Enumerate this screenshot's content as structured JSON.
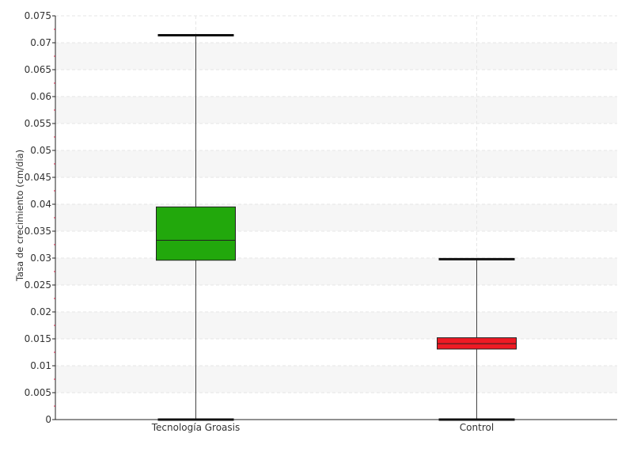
{
  "chart_data": {
    "type": "box",
    "title": "",
    "xlabel": "",
    "ylabel": "Tasa de crecimiento (cm/día)",
    "ylim": [
      0,
      0.075
    ],
    "ytick_step": 0.005,
    "ytick_labels": [
      "0",
      "0.005",
      "0.01",
      "0.015",
      "0.02",
      "0.025",
      "0.03",
      "0.035",
      "0.04",
      "0.045",
      "0.05",
      "0.055",
      "0.06",
      "0.065",
      "0.07",
      "0.075"
    ],
    "grid": true,
    "categories": [
      "Tecnología Groasis",
      "Control"
    ],
    "boxes": [
      {
        "category": "Tecnología Groasis",
        "min": 0.0,
        "q1": 0.0296,
        "median": 0.0333,
        "q3": 0.0395,
        "max": 0.0714,
        "color": "#22a80c"
      },
      {
        "category": "Control",
        "min": 0.0,
        "q1": 0.0131,
        "median": 0.0141,
        "q3": 0.0152,
        "max": 0.0298,
        "color": "#ee1a24"
      }
    ]
  }
}
